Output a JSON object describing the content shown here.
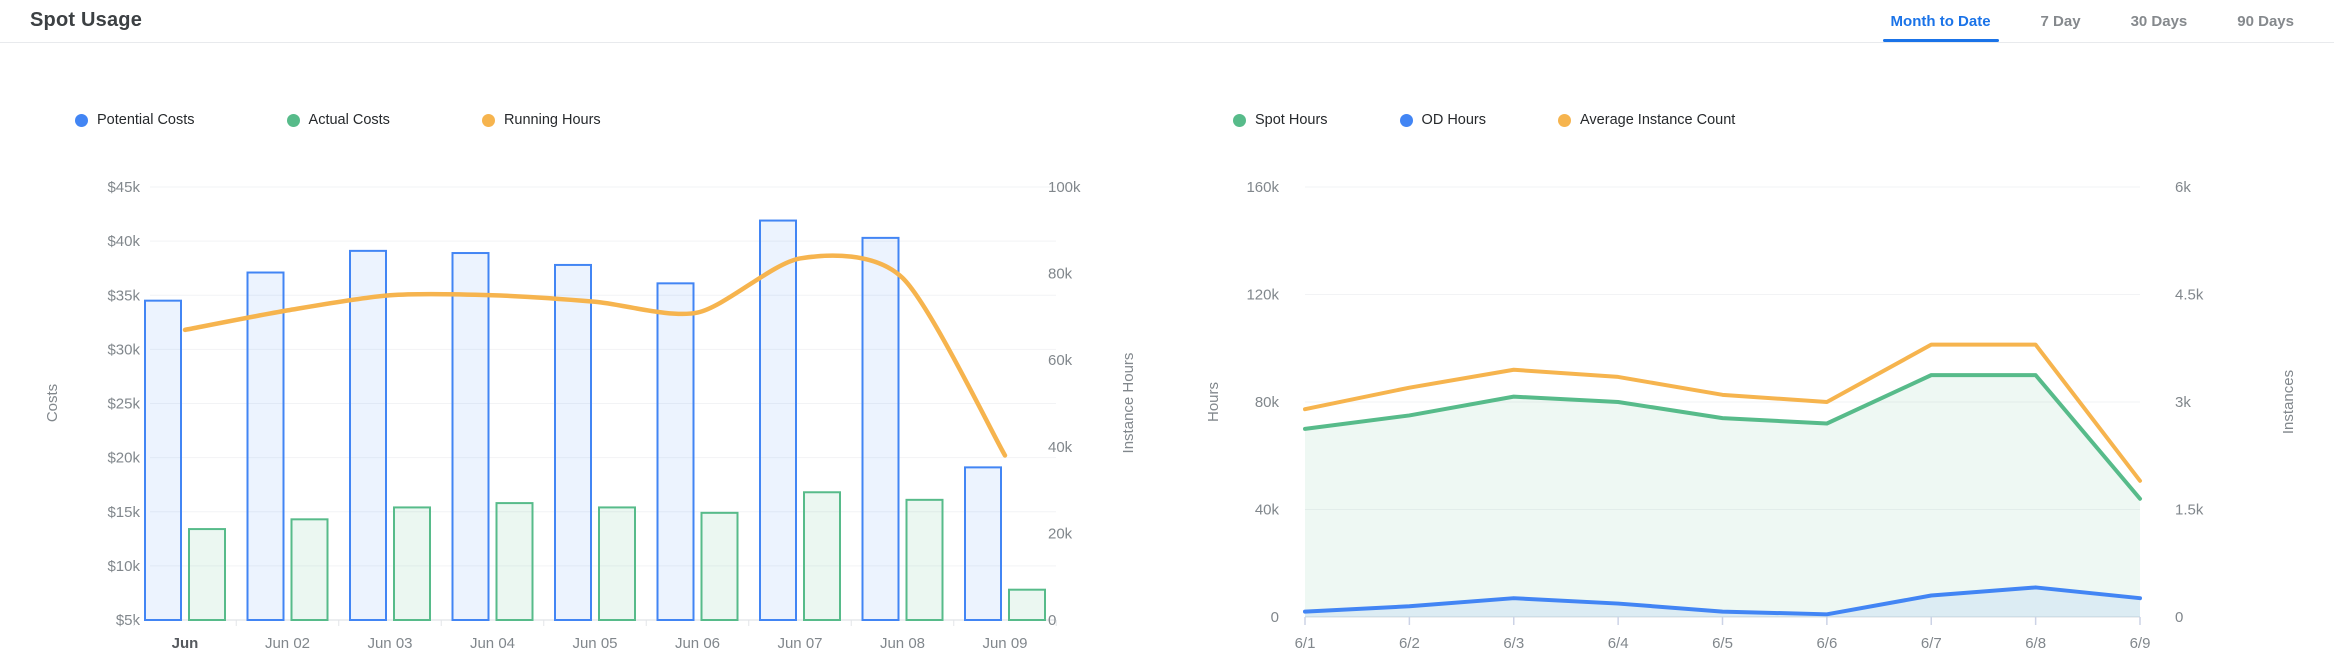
{
  "header": {
    "title": "Spot Usage"
  },
  "tabs": [
    {
      "label": "Month to Date",
      "active": true
    },
    {
      "label": "7 Day",
      "active": false
    },
    {
      "label": "30 Days",
      "active": false
    },
    {
      "label": "90 Days",
      "active": false
    }
  ],
  "colors": {
    "blue": "#4285f4",
    "green": "#57bb8a",
    "orange": "#f6b44e",
    "tab_active": "#1a73e8",
    "axis_text": "#81878c",
    "gridline": "#f2f3f5"
  },
  "chart_data": [
    {
      "id": "costs",
      "type": "bar",
      "subtype": "grouped bars + overlay line",
      "categories": [
        "Jun",
        "Jun 02",
        "Jun 03",
        "Jun 04",
        "Jun 05",
        "Jun 06",
        "Jun 07",
        "Jun 08",
        "Jun 09"
      ],
      "series": [
        {
          "name": "Potential Costs",
          "type": "bar",
          "axis": "left",
          "unit": "$k",
          "color": "#4285f4",
          "values": [
            34.5,
            37.1,
            39.1,
            38.9,
            37.8,
            36.1,
            41.9,
            40.3,
            19.1
          ]
        },
        {
          "name": "Actual Costs",
          "type": "bar",
          "axis": "left",
          "unit": "$k",
          "color": "#57bb8a",
          "values": [
            13.4,
            14.3,
            15.4,
            15.8,
            15.4,
            14.9,
            16.8,
            16.1,
            7.8
          ]
        },
        {
          "name": "Running Hours",
          "type": "line",
          "axis": "right",
          "unit": "k",
          "color": "#f6b44e",
          "values": [
            67,
            71.5,
            75,
            75,
            73.5,
            71,
            83.5,
            79,
            38
          ]
        }
      ],
      "y_left": {
        "label": "Costs",
        "ticks": [
          "$45k",
          "$40k",
          "$35k",
          "$30k",
          "$25k",
          "$20k",
          "$15k",
          "$10k",
          "$5k"
        ],
        "min": 5,
        "max": 45
      },
      "y_right": {
        "label": "Instance Hours",
        "ticks": [
          "100k",
          "80k",
          "60k",
          "40k",
          "20k",
          "0"
        ],
        "min": 0,
        "max": 100
      },
      "grid": true,
      "legend_position": "top"
    },
    {
      "id": "usage",
      "type": "area",
      "subtype": "stacked-looking areas + overlay line",
      "categories": [
        "6/1",
        "6/2",
        "6/3",
        "6/4",
        "6/5",
        "6/6",
        "6/7",
        "6/8",
        "6/9"
      ],
      "series": [
        {
          "name": "Spot Hours",
          "type": "area",
          "axis": "left",
          "unit": "k",
          "color": "#57bb8a",
          "values": [
            70,
            75,
            82,
            80,
            74,
            72,
            90,
            90,
            44
          ]
        },
        {
          "name": "OD Hours",
          "type": "area",
          "axis": "left",
          "unit": "k",
          "color": "#4285f4",
          "values": [
            2,
            4,
            7,
            5,
            2,
            1,
            8,
            11,
            7
          ]
        },
        {
          "name": "Average Instance Count",
          "type": "line",
          "axis": "right",
          "unit": "k",
          "color": "#f6b44e",
          "values": [
            2.9,
            3.2,
            3.45,
            3.35,
            3.1,
            3.0,
            3.8,
            3.8,
            1.9
          ]
        }
      ],
      "y_left": {
        "label": "Hours",
        "ticks": [
          "160k",
          "120k",
          "80k",
          "40k",
          "0"
        ],
        "min": 0,
        "max": 160
      },
      "y_right": {
        "label": "Instances",
        "ticks": [
          "6k",
          "4.5k",
          "3k",
          "1.5k",
          "0"
        ],
        "min": 0,
        "max": 6
      },
      "grid": true,
      "legend_position": "top"
    }
  ]
}
